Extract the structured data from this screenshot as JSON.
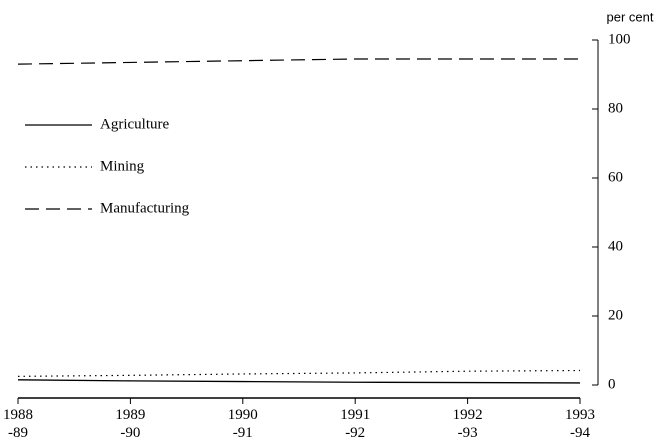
{
  "chart_data": {
    "type": "line",
    "y_axis_label": "per cent",
    "categories": [
      "1988-89",
      "1989-90",
      "1990-91",
      "1991-92",
      "1992-93",
      "1993-94"
    ],
    "series": [
      {
        "name": "Agriculture",
        "color": "#000000",
        "style": "solid",
        "values": [
          1.5,
          1.2,
          1.0,
          0.8,
          0.7,
          0.6
        ]
      },
      {
        "name": "Mining",
        "color": "#000000",
        "style": "dotted",
        "values": [
          2.5,
          2.8,
          3.2,
          3.5,
          4.0,
          4.2
        ]
      },
      {
        "name": "Manufacturing",
        "color": "#000000",
        "style": "dashed",
        "values": [
          93,
          93.5,
          94,
          94.5,
          94.5,
          94.5
        ]
      }
    ],
    "ylim": [
      0,
      100
    ],
    "yticks": [
      0,
      20,
      40,
      60,
      80,
      100
    ],
    "y_axis_side": "right",
    "grid": false
  }
}
